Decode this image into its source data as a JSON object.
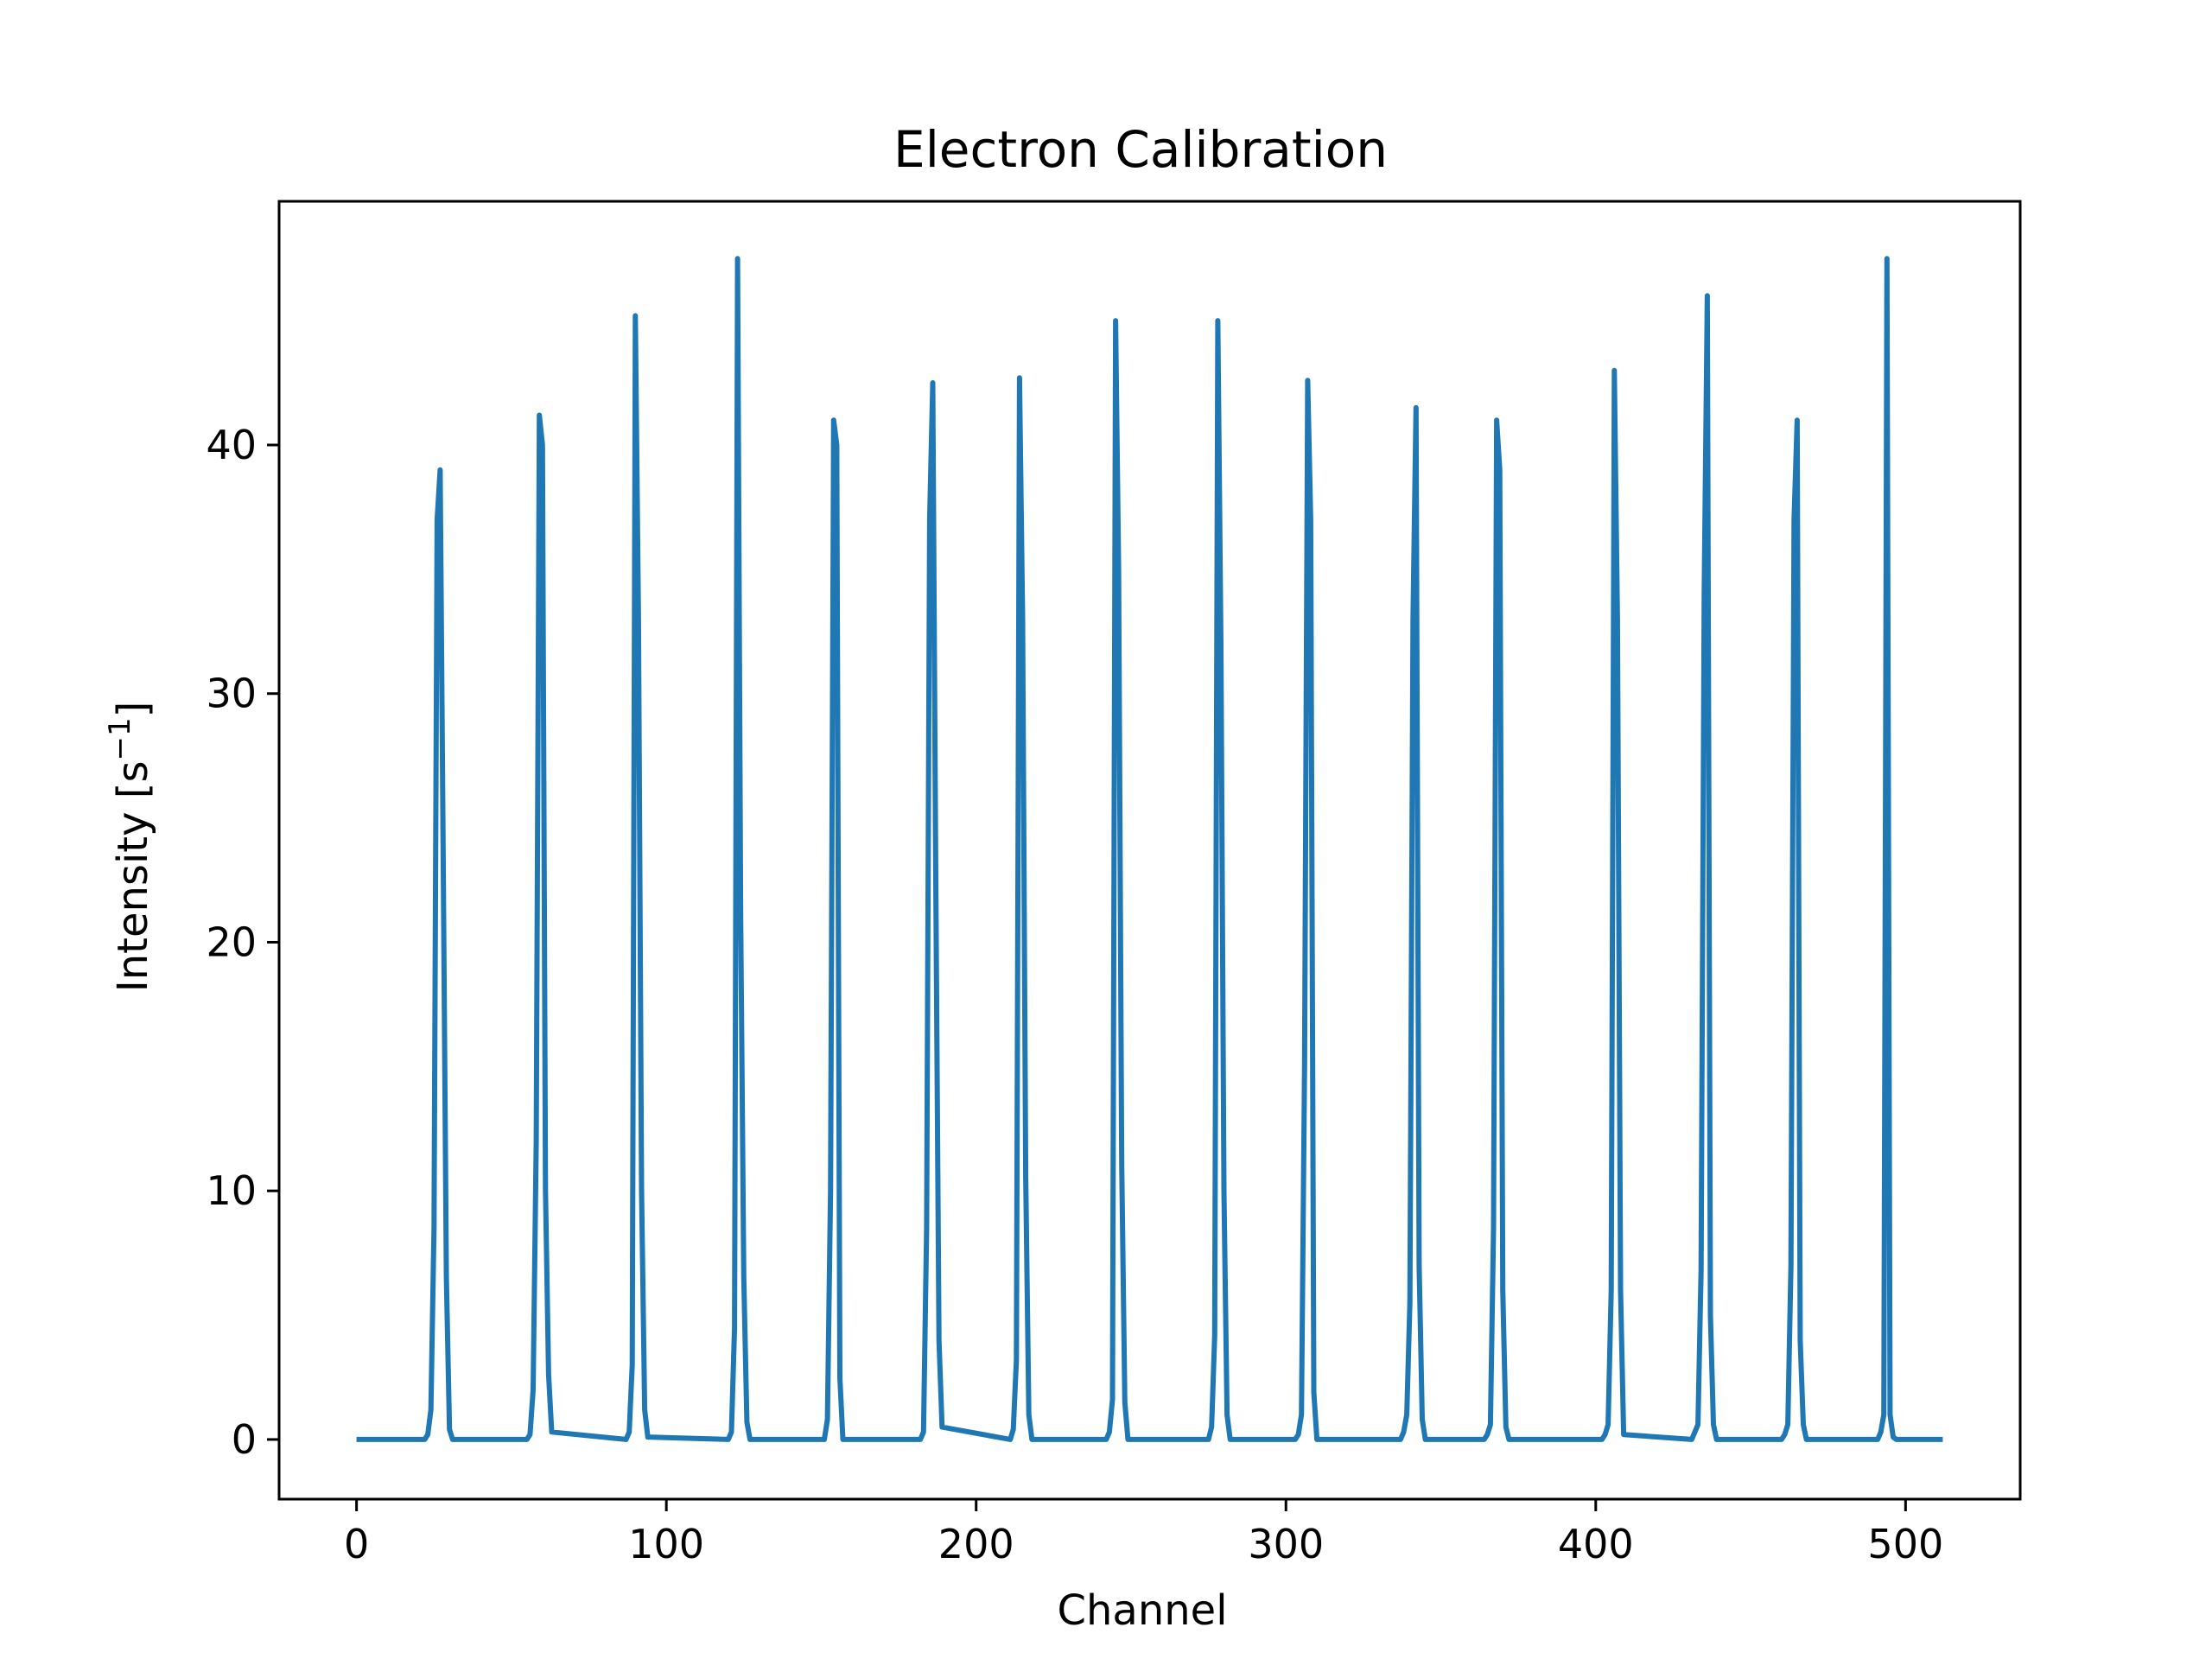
{
  "chart_data": {
    "type": "line",
    "title": "Electron Calibration",
    "xlabel": "Channel",
    "ylabel": {
      "base": "Intensity [s",
      "superscript": "−1",
      "suffix": "]"
    },
    "xlim": [
      -25,
      537
    ],
    "ylim": [
      -2.4,
      49.8
    ],
    "xticks": [
      0,
      100,
      200,
      300,
      400,
      500
    ],
    "yticks": [
      0,
      10,
      20,
      30,
      40
    ],
    "grid": false,
    "color": "#1f77b4",
    "series": [
      {
        "x": [
          0,
          22,
          23,
          24,
          25,
          26,
          27,
          28,
          29,
          30,
          31,
          55,
          56,
          57,
          58,
          59,
          60,
          61,
          62,
          63,
          87,
          88,
          89,
          90,
          91,
          92,
          93,
          94,
          120,
          121,
          122,
          123,
          124,
          125,
          126,
          127,
          151,
          152,
          153,
          154,
          155,
          156,
          157,
          182,
          183,
          184,
          185,
          186,
          187,
          188,
          189,
          211,
          212,
          213,
          214,
          215,
          216,
          217,
          218,
          242,
          243,
          244,
          245,
          246,
          247,
          248,
          249,
          275,
          276,
          277,
          278,
          279,
          280,
          281,
          282,
          303,
          304,
          305,
          306,
          307,
          308,
          309,
          310,
          337,
          338,
          339,
          340,
          341,
          342,
          343,
          344,
          345,
          364,
          365,
          366,
          367,
          368,
          369,
          370,
          371,
          372,
          402,
          403,
          404,
          405,
          406,
          407,
          408,
          409,
          431,
          432,
          433,
          434,
          435,
          436,
          437,
          438,
          439,
          460,
          461,
          462,
          463,
          464,
          465,
          466,
          467,
          468,
          491,
          492,
          493,
          494,
          495,
          496,
          497,
          512
        ],
        "y": [
          0,
          0,
          0.2,
          1.2,
          8.5,
          37,
          39,
          23,
          6.5,
          0.4,
          0,
          0,
          0.2,
          2,
          12,
          41.2,
          40,
          10,
          2.6,
          0.3,
          0,
          0.3,
          3,
          45.2,
          33,
          10,
          1.2,
          0.1,
          0,
          0.3,
          4.5,
          47.5,
          21,
          6.5,
          0.7,
          0,
          0,
          0.8,
          10,
          41,
          40,
          2.5,
          0,
          0,
          0.3,
          8.5,
          37,
          42.5,
          22,
          4,
          0.5,
          0,
          0.4,
          3.2,
          42.7,
          33,
          10.5,
          1,
          0,
          0,
          0.3,
          1.6,
          45,
          35,
          11,
          1.5,
          0,
          0,
          0.5,
          4.2,
          45,
          32,
          10,
          1,
          0,
          0,
          0.2,
          1,
          15,
          42.6,
          37,
          1.9,
          0,
          0,
          0.3,
          1,
          5.5,
          33,
          41.5,
          7,
          0.8,
          0,
          0,
          0.2,
          0.6,
          8.5,
          41,
          39,
          6,
          0.5,
          0,
          0,
          0.2,
          0.6,
          6,
          43,
          33,
          6,
          0.2,
          0,
          0.3,
          0.6,
          6.8,
          34,
          46,
          5,
          0.6,
          0,
          0,
          0.2,
          0.6,
          7,
          37,
          41,
          4,
          0.6,
          0,
          0,
          0.3,
          1,
          47.5,
          1,
          0.1,
          0,
          0
        ]
      }
    ]
  }
}
